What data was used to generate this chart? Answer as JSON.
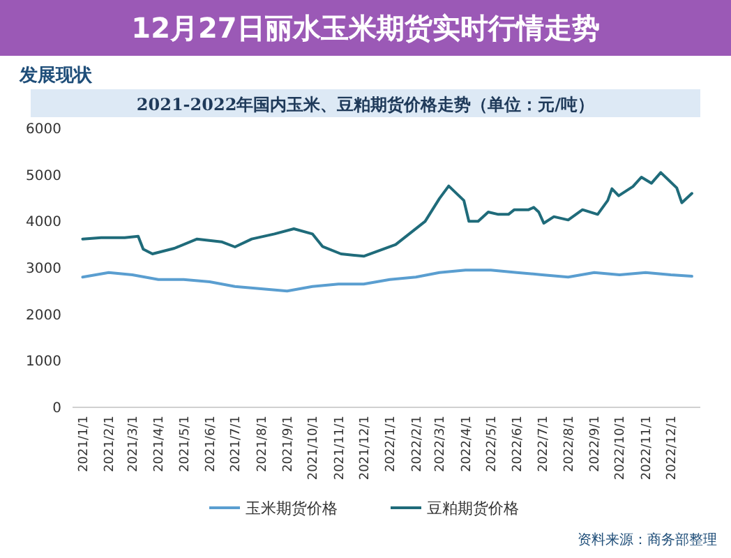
{
  "chart_data": {
    "type": "line",
    "title": "12月27日丽水玉米期货实时行情走势",
    "subtitle": "2021-2022年国内玉米、豆粕期货价格走势（单位：元/吨）",
    "annotations": [
      "发展现状",
      "资料来源：商务部整理"
    ],
    "series": [
      {
        "name": "玉米期货价格",
        "color": "#5a9ed0",
        "x": [
          "2021-01-01",
          "2021-02-01",
          "2021-03-01",
          "2021-04-01",
          "2021-05-01",
          "2021-06-01",
          "2021-07-01",
          "2021-08-01",
          "2021-09-01",
          "2021-10-01",
          "2021-11-01",
          "2021-12-01",
          "2022-01-01",
          "2022-02-01",
          "2022-03-01",
          "2022-04-01",
          "2022-05-01",
          "2022-06-01",
          "2022-07-01",
          "2022-08-01",
          "2022-09-01",
          "2022-10-01",
          "2022-11-01",
          "2022-12-01",
          "2022-12-26"
        ],
        "values": [
          2800,
          2900,
          2850,
          2750,
          2750,
          2700,
          2600,
          2550,
          2500,
          2600,
          2650,
          2650,
          2750,
          2800,
          2900,
          2950,
          2950,
          2900,
          2850,
          2800,
          2900,
          2850,
          2900,
          2850,
          2820
        ]
      },
      {
        "name": "豆粕期货价格",
        "color": "#1f6b7a",
        "x": [
          "2021-01-01",
          "2021-01-23",
          "2021-02-20",
          "2021-03-08",
          "2021-03-14",
          "2021-03-25",
          "2021-04-20",
          "2021-05-17",
          "2021-06-15",
          "2021-07-01",
          "2021-07-21",
          "2021-08-17",
          "2021-09-09",
          "2021-10-01",
          "2021-10-13",
          "2021-11-04",
          "2021-12-01",
          "2022-01-08",
          "2022-02-12",
          "2022-03-01",
          "2022-03-12",
          "2022-03-30",
          "2022-04-05",
          "2022-04-16",
          "2022-04-28",
          "2022-05-10",
          "2022-05-22",
          "2022-05-29",
          "2022-06-15",
          "2022-06-21",
          "2022-06-27",
          "2022-07-03",
          "2022-07-15",
          "2022-08-01",
          "2022-08-18",
          "2022-09-05",
          "2022-09-17",
          "2022-09-22",
          "2022-09-30",
          "2022-10-17",
          "2022-10-27",
          "2022-11-08",
          "2022-11-19",
          "2022-12-08",
          "2022-12-14",
          "2022-12-26"
        ],
        "values": [
          3620,
          3650,
          3650,
          3680,
          3400,
          3300,
          3420,
          3620,
          3560,
          3450,
          3620,
          3730,
          3840,
          3730,
          3460,
          3300,
          3250,
          3500,
          4000,
          4490,
          4760,
          4450,
          4000,
          4000,
          4200,
          4150,
          4150,
          4250,
          4250,
          4300,
          4200,
          3960,
          4100,
          4030,
          4250,
          4150,
          4450,
          4700,
          4550,
          4750,
          4950,
          4820,
          5050,
          4720,
          4400,
          4600
        ]
      }
    ],
    "xlim": [
      "2020-12-20",
      "2023-01-05"
    ],
    "xticks": [
      {
        "value": "2021-01-01",
        "label": "2021/1/1"
      },
      {
        "value": "2021-02-01",
        "label": "2021/2/1"
      },
      {
        "value": "2021-03-01",
        "label": "2021/3/1"
      },
      {
        "value": "2021-04-01",
        "label": "2021/4/1"
      },
      {
        "value": "2021-05-01",
        "label": "2021/5/1"
      },
      {
        "value": "2021-06-01",
        "label": "2021/6/1"
      },
      {
        "value": "2021-07-01",
        "label": "2021/7/1"
      },
      {
        "value": "2021-08-01",
        "label": "2021/8/1"
      },
      {
        "value": "2021-09-01",
        "label": "2021/9/1"
      },
      {
        "value": "2021-10-01",
        "label": "2021/10/1"
      },
      {
        "value": "2021-11-01",
        "label": "2021/11/1"
      },
      {
        "value": "2021-12-01",
        "label": "2021/12/1"
      },
      {
        "value": "2022-01-01",
        "label": "2022/1/1"
      },
      {
        "value": "2022-02-01",
        "label": "2022/2/1"
      },
      {
        "value": "2022-03-01",
        "label": "2022/3/1"
      },
      {
        "value": "2022-04-01",
        "label": "2022/4/1"
      },
      {
        "value": "2022-05-01",
        "label": "2022/5/1"
      },
      {
        "value": "2022-06-01",
        "label": "2022/6/1"
      },
      {
        "value": "2022-07-01",
        "label": "2022/7/1"
      },
      {
        "value": "2022-08-01",
        "label": "2022/8/1"
      },
      {
        "value": "2022-09-01",
        "label": "2022/9/1"
      },
      {
        "value": "2022-10-01",
        "label": "2022/10/1"
      },
      {
        "value": "2022-11-01",
        "label": "2022/11/1"
      },
      {
        "value": "2022-12-01",
        "label": "2022/12/1"
      }
    ],
    "ylim": [
      0,
      6000
    ],
    "yticks": [
      0,
      1000,
      2000,
      3000,
      4000,
      5000,
      6000
    ],
    "grid": false,
    "legend": "bottom",
    "marker": "none",
    "line_style": "solid"
  }
}
